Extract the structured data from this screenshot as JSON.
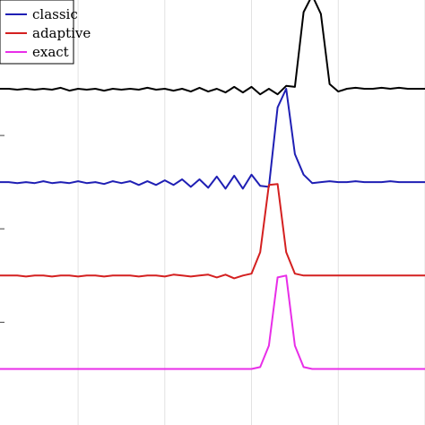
{
  "chart_data": {
    "type": "line",
    "title": "",
    "xlabel": "",
    "ylabel": "",
    "grid": true,
    "legend_position": "top-left",
    "x": [
      -29,
      -28,
      -27,
      -26,
      -25,
      -24,
      -23,
      -22,
      -21,
      -20,
      -19,
      -18,
      -17,
      -16,
      -15,
      -14,
      -13,
      -12,
      -11,
      -10,
      -9,
      -8,
      -7,
      -6,
      -5,
      -4,
      -3,
      -2,
      -1,
      0,
      1,
      2,
      3,
      4,
      5,
      6,
      7,
      8,
      9,
      10,
      11,
      12,
      13,
      14,
      15,
      16,
      17,
      18,
      19,
      20
    ],
    "xlim": [
      -29,
      20
    ],
    "ylim": [
      -0.6,
      3.95
    ],
    "series": [
      {
        "name": "",
        "color": "#000000",
        "offset": 3,
        "values": [
          0.0,
          0.0,
          -0.01,
          0.0,
          -0.01,
          0.0,
          -0.01,
          0.01,
          -0.02,
          0.0,
          -0.01,
          0.0,
          -0.02,
          0.0,
          -0.01,
          0.0,
          -0.01,
          0.01,
          -0.01,
          0.0,
          -0.02,
          0.0,
          -0.03,
          0.01,
          -0.03,
          0.0,
          -0.04,
          0.02,
          -0.04,
          0.02,
          -0.06,
          0.0,
          -0.06,
          0.03,
          0.02,
          0.82,
          1.0,
          0.8,
          0.05,
          -0.03,
          0.0,
          0.01,
          0.0,
          0.0,
          0.01,
          0.0,
          0.01,
          0.0,
          0.0,
          0.0
        ]
      },
      {
        "name": "classic",
        "color": "#1f1fb4",
        "offset": 2,
        "values": [
          0.0,
          0.0,
          -0.01,
          0.0,
          -0.01,
          0.01,
          -0.01,
          0.0,
          -0.01,
          0.01,
          -0.01,
          0.0,
          -0.02,
          0.01,
          -0.01,
          0.01,
          -0.03,
          0.01,
          -0.03,
          0.02,
          -0.03,
          0.03,
          -0.05,
          0.03,
          -0.06,
          0.06,
          -0.07,
          0.07,
          -0.07,
          0.08,
          -0.04,
          -0.05,
          0.8,
          1.0,
          0.3,
          0.08,
          -0.01,
          0.0,
          0.01,
          0.0,
          0.0,
          0.01,
          0.0,
          0.0,
          0.0,
          0.01,
          0.0,
          0.0,
          0.0,
          0.0
        ]
      },
      {
        "name": "adaptive",
        "color": "#d42020",
        "offset": 1,
        "values": [
          0.0,
          0.0,
          0.0,
          -0.01,
          0.0,
          0.0,
          -0.01,
          0.0,
          0.0,
          -0.01,
          0.0,
          0.0,
          -0.01,
          0.0,
          0.0,
          0.0,
          -0.01,
          0.0,
          0.0,
          -0.01,
          0.01,
          0.0,
          -0.01,
          0.0,
          0.01,
          -0.02,
          0.01,
          -0.03,
          0.0,
          0.02,
          0.25,
          0.97,
          0.98,
          0.25,
          0.02,
          0.0,
          0.0,
          0.0,
          0.0,
          0.0,
          0.0,
          0.0,
          0.0,
          0.0,
          0.0,
          0.0,
          0.0,
          0.0,
          0.0,
          0.0
        ]
      },
      {
        "name": "exact",
        "color": "#e82ee8",
        "offset": 0,
        "values": [
          0.0,
          0.0,
          0.0,
          0.0,
          0.0,
          0.0,
          0.0,
          0.0,
          0.0,
          0.0,
          0.0,
          0.0,
          0.0,
          0.0,
          0.0,
          0.0,
          0.0,
          0.0,
          0.0,
          0.0,
          0.0,
          0.0,
          0.0,
          0.0,
          0.0,
          0.0,
          0.0,
          0.0,
          0.0,
          0.0,
          0.02,
          0.25,
          0.98,
          1.0,
          0.25,
          0.02,
          0.0,
          0.0,
          0.0,
          0.0,
          0.0,
          0.0,
          0.0,
          0.0,
          0.0,
          0.0,
          0.0,
          0.0,
          0.0,
          0.0
        ]
      }
    ],
    "legend": [
      "classic",
      "adaptive",
      "exact"
    ]
  }
}
